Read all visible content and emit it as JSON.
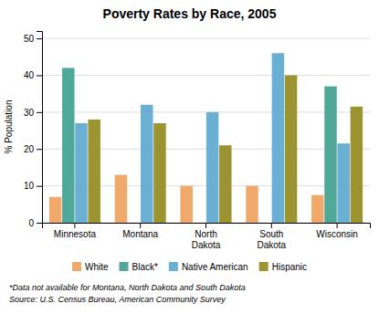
{
  "chart_data": {
    "type": "bar",
    "title": "Poverty Rates by Race, 2005",
    "ylabel": "% Population",
    "categories": [
      "Minnesota",
      "Montana",
      "North\nDakota",
      "South\nDakota",
      "Wisconsin"
    ],
    "series": [
      {
        "name": "White",
        "color": "#f0a96a",
        "values": [
          7,
          13,
          10,
          10,
          7.5
        ]
      },
      {
        "name": "Black*",
        "color": "#4fa898",
        "values": [
          42,
          null,
          null,
          null,
          37
        ]
      },
      {
        "name": "Native American",
        "color": "#6aafd4",
        "values": [
          27,
          32,
          30,
          46,
          21.5
        ]
      },
      {
        "name": "Hispanic",
        "color": "#9b9430",
        "values": [
          28,
          27,
          21,
          40,
          31.5
        ]
      }
    ],
    "ylim": [
      0,
      52
    ],
    "yticks": [
      0,
      10,
      20,
      30,
      40,
      50
    ],
    "grid": true,
    "legend": "bottom",
    "annotations": [
      "*Data not available for Montana, North Dakota and South Dakota",
      "Source: U.S. Census Bureau, American Community Survey"
    ]
  }
}
